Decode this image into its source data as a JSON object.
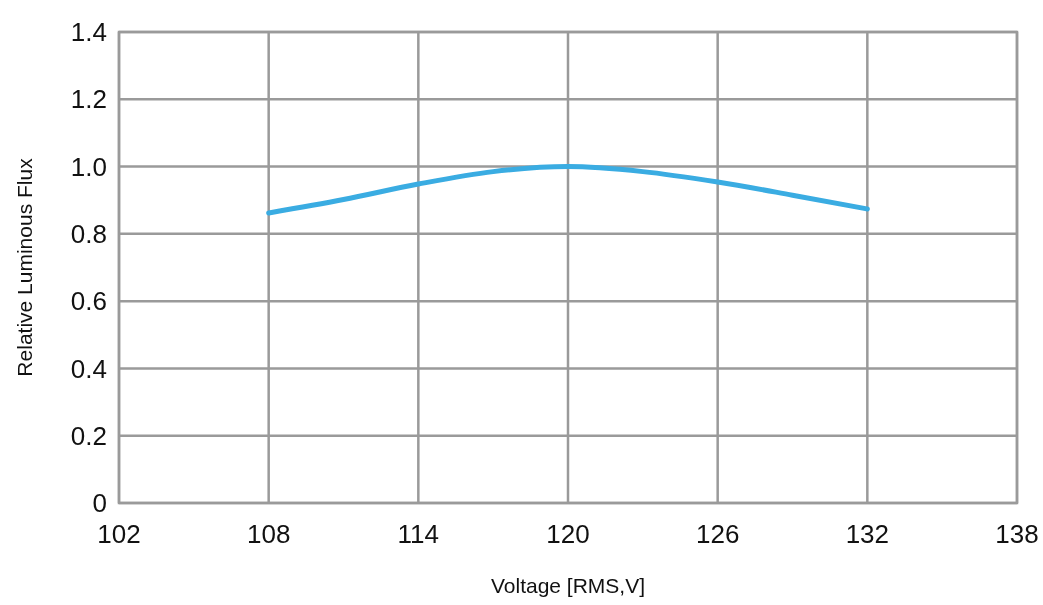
{
  "chart_data": {
    "type": "line",
    "xlabel": "Voltage [RMS,V]",
    "ylabel": "Relative Luminous Flux",
    "x": [
      108,
      111,
      114,
      117,
      120,
      123,
      126,
      129,
      132
    ],
    "series": [
      {
        "color": "#3aace2",
        "values": [
          0.862,
          0.902,
          0.948,
          0.985,
          1.0,
          0.985,
          0.954,
          0.915,
          0.874
        ]
      }
    ],
    "xlim": [
      102,
      138
    ],
    "xticks": [
      102,
      108,
      114,
      120,
      126,
      132,
      138
    ],
    "ylim": [
      0,
      1.4
    ],
    "yticks": [
      0,
      0.2,
      0.4,
      0.6,
      0.8,
      {
        "value": 1.0,
        "label": "1.0"
      },
      1.2,
      1.4
    ],
    "grid": true
  }
}
